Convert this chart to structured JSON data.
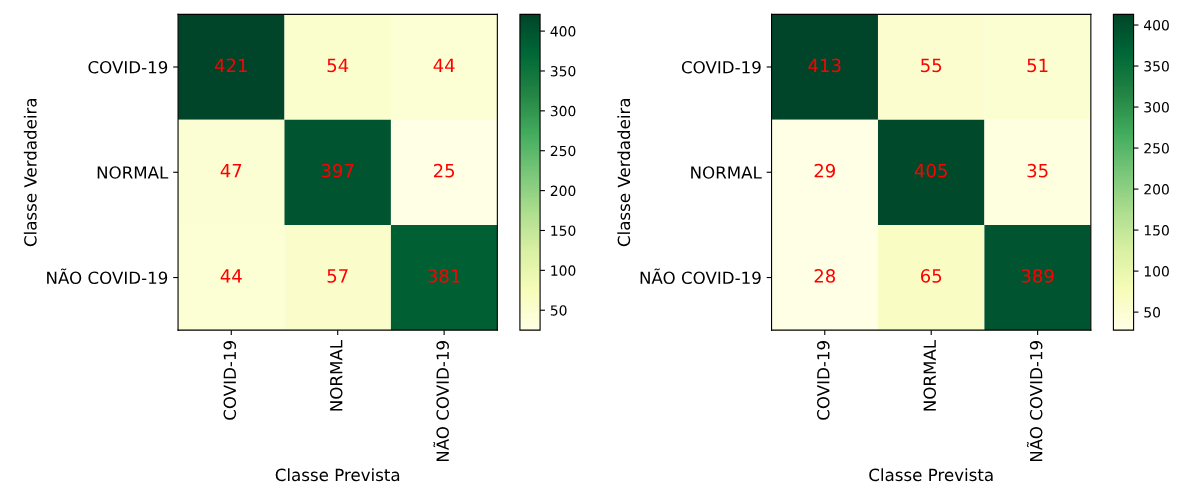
{
  "chart_data": [
    {
      "type": "heatmap",
      "xlabel": "Classe Prevista",
      "ylabel": "Classe Verdadeira",
      "categories": [
        "COVID-19",
        "NORMAL",
        "NÃO COVID-19"
      ],
      "y_categories": [
        "COVID-19",
        "NORMAL",
        "NÃO COVID-19"
      ],
      "cells": [
        [
          421,
          54,
          44
        ],
        [
          47,
          397,
          25
        ],
        [
          44,
          57,
          381
        ]
      ],
      "clim": [
        25,
        421
      ],
      "cticks": [
        50,
        100,
        150,
        200,
        250,
        300,
        350,
        400
      ],
      "data_labels": true
    },
    {
      "type": "heatmap",
      "xlabel": "Classe Prevista",
      "ylabel": "Classe Verdadeira",
      "categories": [
        "COVID-19",
        "NORMAL",
        "NÃO COVID-19"
      ],
      "y_categories": [
        "COVID-19",
        "NORMAL",
        "NÃO COVID-19"
      ],
      "cells": [
        [
          413,
          55,
          51
        ],
        [
          29,
          405,
          35
        ],
        [
          28,
          65,
          389
        ]
      ],
      "clim": [
        28,
        413
      ],
      "cticks": [
        50,
        100,
        150,
        200,
        250,
        300,
        350,
        400
      ],
      "data_labels": true
    }
  ]
}
